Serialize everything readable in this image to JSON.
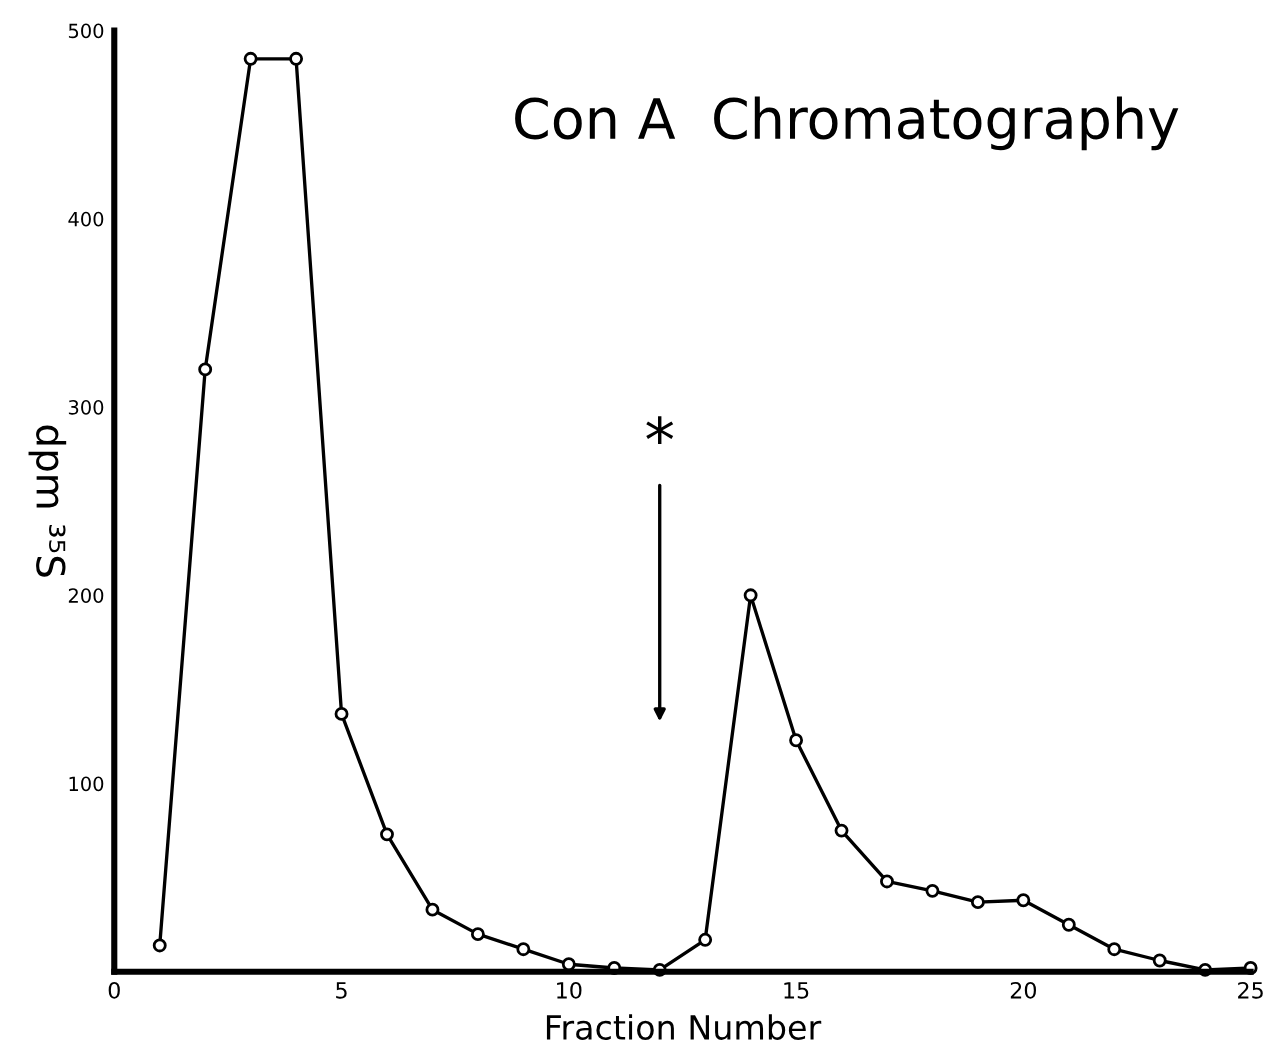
{
  "chart_data": {
    "type": "line",
    "title": "Con A  Chromatography",
    "xlabel": "Fraction Number",
    "ylabel": "dpm ³⁵S",
    "x": [
      1,
      2,
      3,
      4,
      5,
      6,
      7,
      8,
      9,
      10,
      11,
      12,
      13,
      14,
      15,
      16,
      17,
      18,
      19,
      20,
      21,
      22,
      23,
      24,
      25
    ],
    "series": [
      {
        "color": "#000000",
        "values": [
          14,
          320,
          485,
          485,
          137,
          73,
          33,
          20,
          12,
          4,
          2,
          1,
          17,
          200,
          123,
          75,
          48,
          43,
          37,
          38,
          25,
          12,
          6,
          1,
          2
        ]
      }
    ],
    "xlim": [
      0,
      25
    ],
    "ylim": [
      0,
      500
    ],
    "xticks": [
      0,
      5,
      10,
      15,
      20,
      25
    ],
    "yticks": [
      100,
      200,
      300,
      400,
      500
    ],
    "annotations": [
      "*"
    ],
    "marker": "circle",
    "line_style": "solid",
    "grid": false,
    "legend": false
  }
}
